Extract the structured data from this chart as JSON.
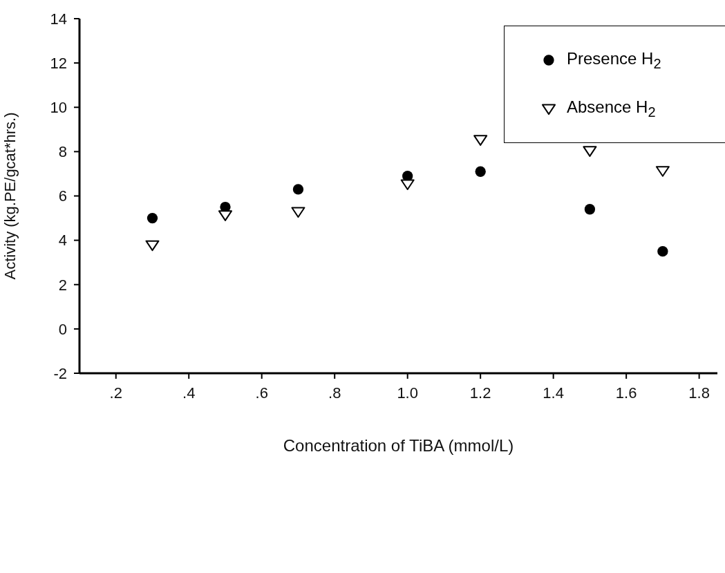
{
  "chart_data": {
    "type": "scatter",
    "xlabel": "Concentration of TiBA (mmol/L)",
    "ylabel": "Activity (kg.PE/gcat*hrs.)",
    "xlim": [
      0.1,
      1.85
    ],
    "xticks": [
      {
        "value": 0.2,
        "label": ".2"
      },
      {
        "value": 0.4,
        "label": ".4"
      },
      {
        "value": 0.6,
        "label": ".6"
      },
      {
        "value": 0.8,
        "label": ".8"
      },
      {
        "value": 1.0,
        "label": "1.0"
      },
      {
        "value": 1.2,
        "label": "1.2"
      },
      {
        "value": 1.4,
        "label": "1.4"
      },
      {
        "value": 1.6,
        "label": "1.6"
      },
      {
        "value": 1.8,
        "label": "1.8"
      }
    ],
    "ylim": [
      -2,
      14
    ],
    "yticks": [
      -2,
      0,
      2,
      4,
      6,
      8,
      10,
      12,
      14
    ],
    "x": [
      0.3,
      0.5,
      0.7,
      1.0,
      1.2,
      1.5,
      1.7
    ],
    "series": [
      {
        "name": "Presence H$_{2}$",
        "color": "#000000",
        "marker": "circle",
        "values": [
          5.0,
          5.5,
          6.3,
          6.9,
          7.1,
          5.4,
          3.5
        ]
      },
      {
        "name": "Absence H$_{2}$",
        "color": "#000000",
        "marker": "triangle",
        "values": [
          3.8,
          5.15,
          5.3,
          6.55,
          8.55,
          8.05,
          7.15
        ]
      }
    ],
    "grid": false,
    "legend": "top right"
  }
}
